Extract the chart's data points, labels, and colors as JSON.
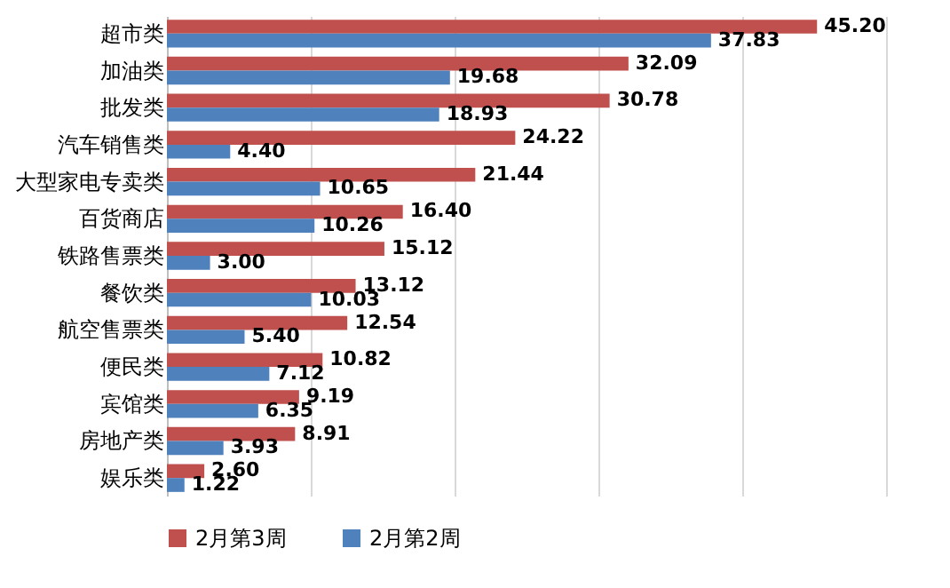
{
  "chart_data": {
    "type": "bar",
    "orientation": "horizontal",
    "categories": [
      "超市类",
      "加油类",
      "批发类",
      "汽车销售类",
      "大型家电专卖类",
      "百货商店",
      "铁路售票类",
      "餐饮类",
      "航空售票类",
      "便民类",
      "宾馆类",
      "房地产类",
      "娱乐类"
    ],
    "series": [
      {
        "name": "2月第3周",
        "color": "#c0504d",
        "values": [
          45.2,
          32.09,
          30.78,
          24.22,
          21.44,
          16.4,
          15.12,
          13.12,
          12.54,
          10.82,
          9.19,
          8.91,
          2.6
        ],
        "value_labels": [
          "45.20",
          "32.09",
          "30.78",
          "24.22",
          "21.44",
          "16.40",
          "15.12",
          "13.12",
          "12.54",
          "10.82",
          "9.19",
          "8.91",
          "2.60"
        ]
      },
      {
        "name": "2月第2周",
        "color": "#4f81bd",
        "values": [
          37.83,
          19.68,
          18.93,
          4.4,
          10.65,
          10.26,
          3.0,
          10.03,
          5.4,
          7.12,
          6.35,
          3.93,
          1.22
        ],
        "value_labels": [
          "37.83",
          "19.68",
          "18.93",
          "4.40",
          "10.65",
          "10.26",
          "3.00",
          "10.03",
          "5.40",
          "7.12",
          "6.35",
          "3.93",
          "1.22"
        ]
      }
    ],
    "xlim": [
      0,
      50
    ],
    "xticks": [
      {
        "value": 0,
        "label": null
      },
      {
        "value": 10,
        "label": null
      },
      {
        "value": 20,
        "label": null
      },
      {
        "value": 30,
        "label": null
      },
      {
        "value": 40,
        "label": null
      },
      {
        "value": 50,
        "label": null
      }
    ],
    "tick_labels": "y",
    "grid": "x",
    "legend": "bottom"
  }
}
